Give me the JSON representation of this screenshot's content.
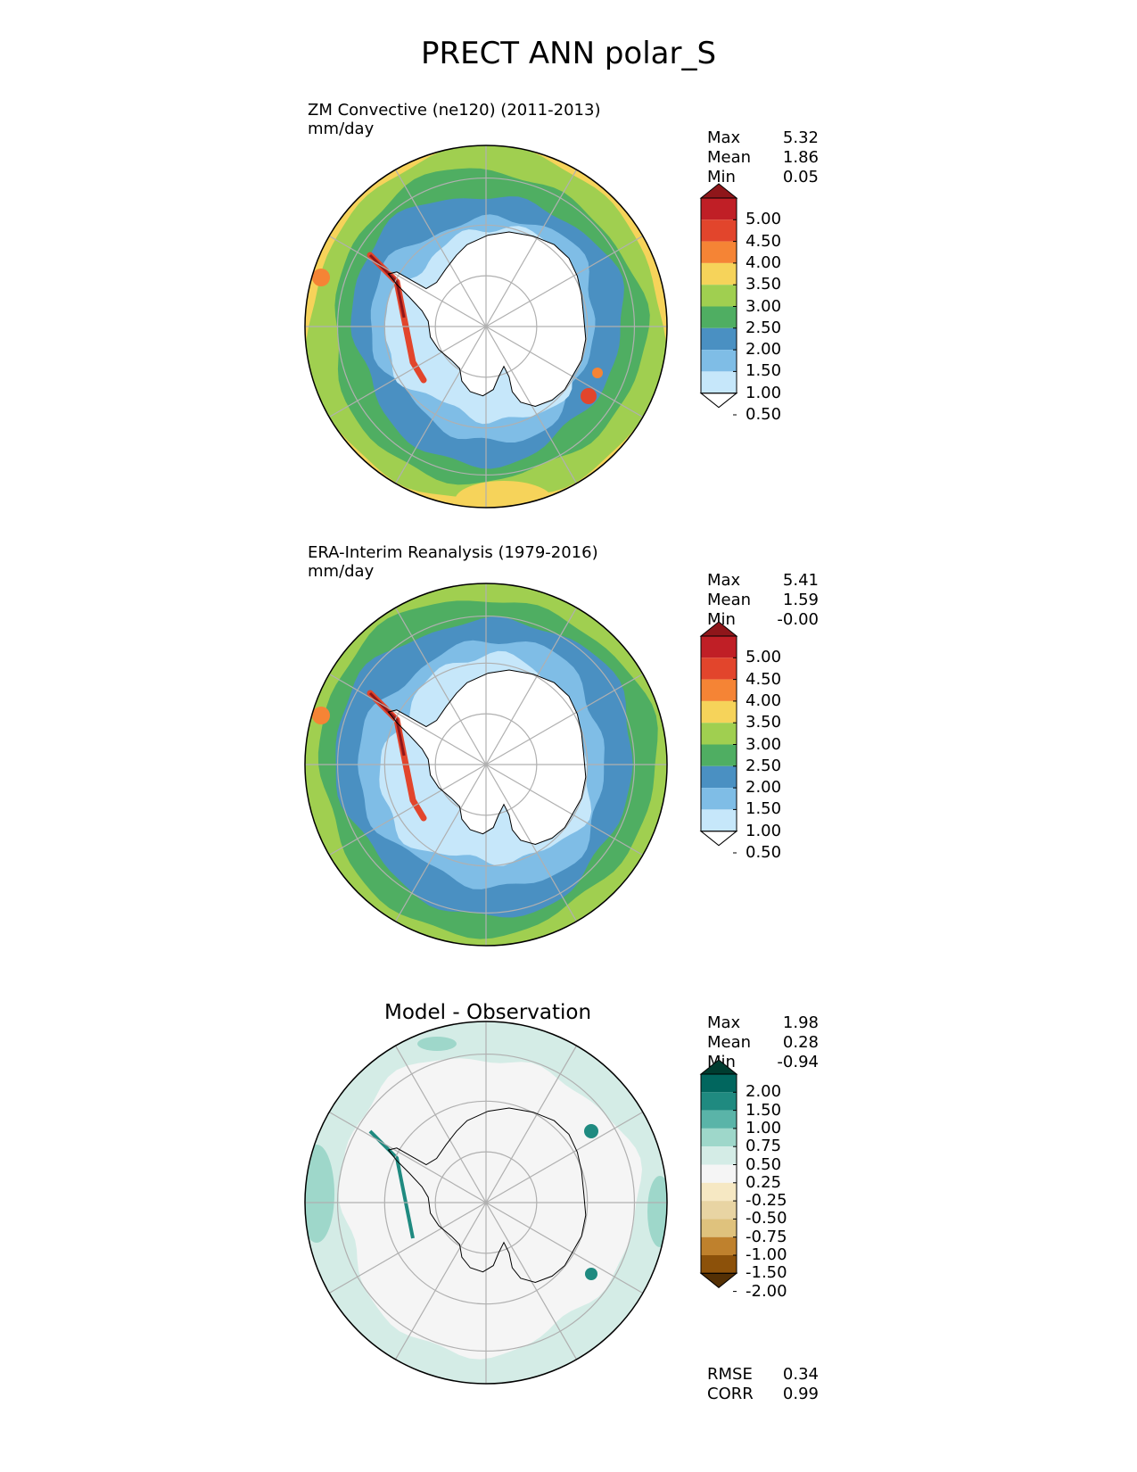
{
  "title": "PRECT ANN polar_S",
  "panels": [
    {
      "id": "test",
      "title_line1": "ZM Convective (ne120) (2011-2013)",
      "title_line2": "mm/day",
      "stats": [
        {
          "label": "Max",
          "value": "5.32"
        },
        {
          "label": "Mean",
          "value": "1.86"
        },
        {
          "label": "Min",
          "value": "0.05"
        }
      ],
      "colorbar": {
        "ticks": [
          "5.00",
          "4.50",
          "4.00",
          "3.50",
          "3.00",
          "2.50",
          "2.00",
          "1.50",
          "1.00",
          "0.50"
        ],
        "colors": [
          "#ffffff",
          "#c6e7fa",
          "#7fbde6",
          "#4a90c2",
          "#4fae62",
          "#a0cf50",
          "#f6d35a",
          "#f58435",
          "#e2452c",
          "#c01f26",
          "#8f161a"
        ]
      }
    },
    {
      "id": "reference",
      "title_line1": "ERA-Interim Reanalysis (1979-2016)",
      "title_line2": "mm/day",
      "stats": [
        {
          "label": "Max",
          "value": "5.41"
        },
        {
          "label": "Mean",
          "value": "1.59"
        },
        {
          "label": "Min",
          "value": "-0.00"
        }
      ],
      "colorbar": {
        "ticks": [
          "5.00",
          "4.50",
          "4.00",
          "3.50",
          "3.00",
          "2.50",
          "2.00",
          "1.50",
          "1.00",
          "0.50"
        ],
        "colors": [
          "#ffffff",
          "#c6e7fa",
          "#7fbde6",
          "#4a90c2",
          "#4fae62",
          "#a0cf50",
          "#f6d35a",
          "#f58435",
          "#e2452c",
          "#c01f26",
          "#8f161a"
        ]
      }
    },
    {
      "id": "difference",
      "title_line1": "Model - Observation",
      "stats": [
        {
          "label": "Max",
          "value": "1.98"
        },
        {
          "label": "Mean",
          "value": "0.28"
        },
        {
          "label": "Min",
          "value": "-0.94"
        }
      ],
      "colorbar": {
        "ticks": [
          "2.00",
          "1.50",
          "1.00",
          "0.75",
          "0.50",
          "0.25",
          "-0.25",
          "-0.50",
          "-0.75",
          "-1.00",
          "-1.50",
          "-2.00"
        ],
        "colors": [
          "#543005",
          "#8c510a",
          "#bf812d",
          "#dfc27d",
          "#e8d4a3",
          "#f6e8c3",
          "#f5f5f5",
          "#d4ece6",
          "#9ed7ca",
          "#5ab4a8",
          "#1f8a80",
          "#01665e",
          "#003c30"
        ]
      },
      "metrics": [
        {
          "label": "RMSE",
          "value": "0.34"
        },
        {
          "label": "CORR",
          "value": "0.99"
        }
      ]
    }
  ],
  "map_colors": {
    "ice": "#ffffff",
    "coast": "#000000",
    "grid": "#b0b0b0"
  }
}
